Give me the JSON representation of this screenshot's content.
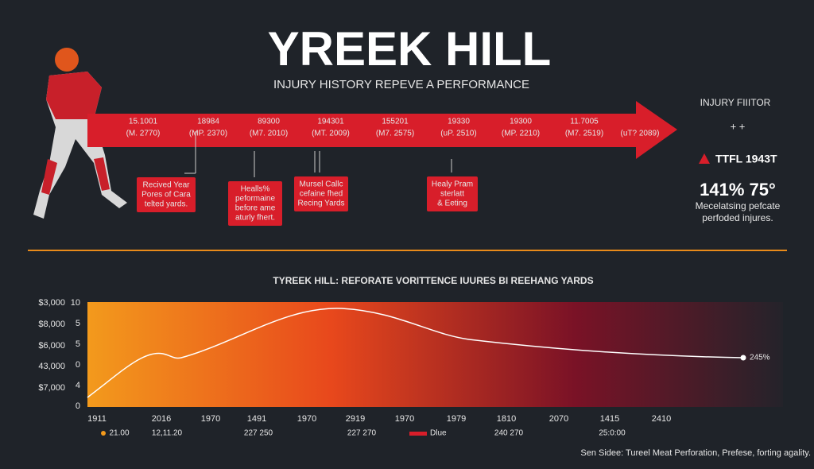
{
  "header": {
    "title": "YREEK HILL",
    "subtitle": "INJURY HISTORY REPEVE A PERFORMANCE"
  },
  "timeline": [
    {
      "lines": [
        "15.1001",
        "(M. 2770)"
      ]
    },
    {
      "lines": [
        "18984",
        "(MP. 2370)"
      ]
    },
    {
      "lines": [
        "89300",
        "(M7. 2010)"
      ]
    },
    {
      "lines": [
        "194301",
        "(MT. 2009)"
      ]
    },
    {
      "lines": [
        "155201",
        "(M7. 2575)"
      ]
    },
    {
      "lines": [
        "19330",
        "(uP. 2510)"
      ]
    },
    {
      "lines": [
        "19300",
        "(MP. 2210)"
      ]
    },
    {
      "lines": [
        "11.7005",
        "(M7. 2519)"
      ]
    },
    {
      "lines": [
        "(uT? 2089)"
      ]
    }
  ],
  "callouts": [
    {
      "lines": [
        "Recived Year",
        "Pores of Cara",
        "telted yards."
      ]
    },
    {
      "lines": [
        "Healls%",
        "peformaine",
        "before ame",
        "aturly fhert."
      ]
    },
    {
      "lines": [
        "Mursel Callc",
        "cefaine fhed",
        "Recing Yards"
      ]
    },
    {
      "lines": [
        "Healy Pram",
        "sterlatt",
        "& Eeting"
      ]
    }
  ],
  "side": {
    "heading": "INJURY FIIITOR",
    "plus": "+ +",
    "badge": "TTFL 1943T",
    "stat": "141% 75°",
    "note": [
      "Mecelatsing pefcate",
      "perfoded injures."
    ]
  },
  "chart": {
    "title": "TYREEK HILL: REFORATE VORITTENCE IUURES BI REEHANG YARDS",
    "outer_labels": [
      "$3,000",
      "$8,000",
      "$6,000",
      "43,000",
      "$7,000"
    ],
    "inner_labels": [
      "10",
      "5",
      "5",
      "0",
      "4",
      "0"
    ],
    "x_labels": [
      "1911",
      "2016",
      "1970",
      "1491",
      "1970",
      "2919",
      "1970",
      "1979",
      "1810",
      "2070",
      "1415",
      "2410"
    ],
    "sub_labels": [
      "21.00",
      "12,11.20",
      "227 250",
      "227 270",
      "Dlue",
      "240 270",
      "25:0:00"
    ],
    "end_label": "245%"
  },
  "footer": "Sen Sidee: Tureel Meat Perforation, Prefese, forting agality."
}
